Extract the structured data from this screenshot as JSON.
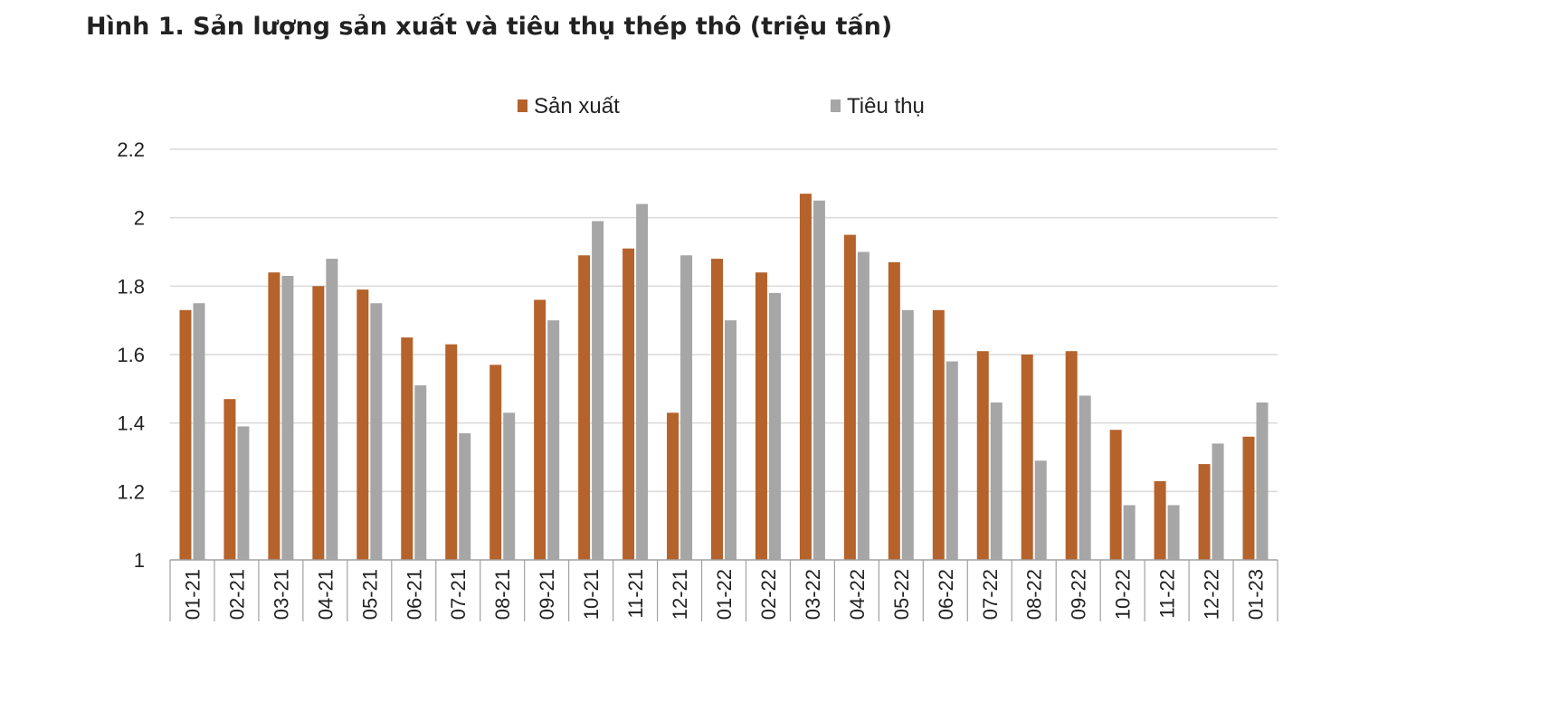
{
  "title": "Hình 1. Sản lượng sản xuất và tiêu thụ thép thô (triệu tấn)",
  "chart_data": {
    "type": "bar",
    "title": "Hình 1. Sản lượng sản xuất và tiêu thụ thép thô (triệu tấn)",
    "xlabel": "",
    "ylabel": "",
    "ylim": [
      1,
      2.2
    ],
    "yticks": [
      "1",
      "1.2",
      "1.4",
      "1.6",
      "1.8",
      "2",
      "2.2"
    ],
    "grid": true,
    "legend_position": "top",
    "categories": [
      "01-21",
      "02-21",
      "03-21",
      "04-21",
      "05-21",
      "06-21",
      "07-21",
      "08-21",
      "09-21",
      "10-21",
      "11-21",
      "12-21",
      "01-22",
      "02-22",
      "03-22",
      "04-22",
      "05-22",
      "06-22",
      "07-22",
      "08-22",
      "09-22",
      "10-22",
      "11-22",
      "12-22",
      "01-23"
    ],
    "series": [
      {
        "name": "Sản xuất",
        "color": "#b5622b",
        "values": [
          1.73,
          1.47,
          1.84,
          1.8,
          1.79,
          1.65,
          1.63,
          1.57,
          1.76,
          1.89,
          1.91,
          1.43,
          1.88,
          1.84,
          2.07,
          1.95,
          1.87,
          1.73,
          1.61,
          1.6,
          1.61,
          1.38,
          1.23,
          1.28,
          1.36
        ]
      },
      {
        "name": "Tiêu thụ",
        "color": "#a6a6a6",
        "values": [
          1.75,
          1.39,
          1.83,
          1.88,
          1.75,
          1.51,
          1.37,
          1.43,
          1.7,
          1.99,
          2.04,
          1.89,
          1.7,
          1.78,
          2.05,
          1.9,
          1.73,
          1.58,
          1.46,
          1.29,
          1.48,
          1.16,
          1.16,
          1.34,
          1.46
        ]
      }
    ]
  }
}
